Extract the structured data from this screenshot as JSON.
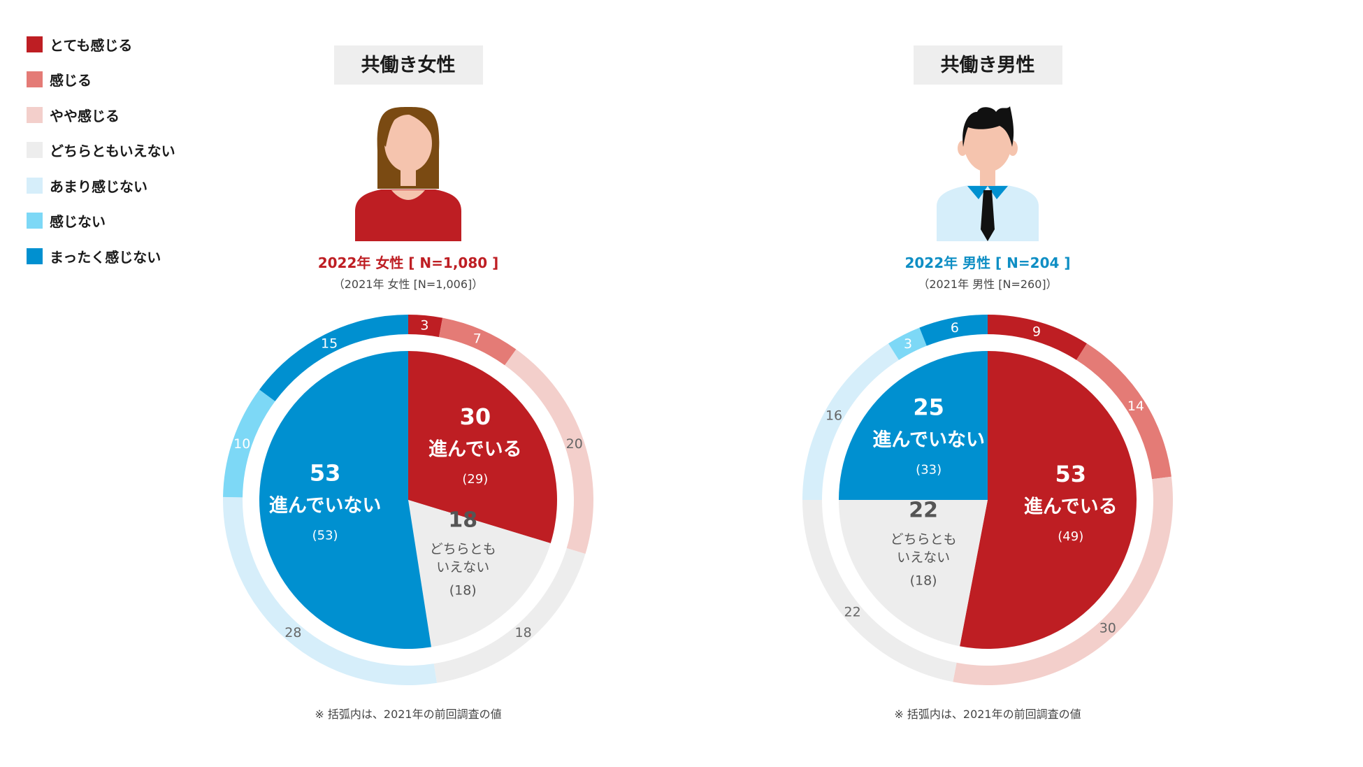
{
  "legend": [
    {
      "label": "とても感じる",
      "color": "#BE1E23"
    },
    {
      "label": "感じる",
      "color": "#E47B76"
    },
    {
      "label": "やや感じる",
      "color": "#F3CFCB"
    },
    {
      "label": "どちらともいえない",
      "color": "#EDEDED"
    },
    {
      "label": "あまり感じない",
      "color": "#D6EEFA"
    },
    {
      "label": "感じない",
      "color": "#7DD8F6"
    },
    {
      "label": "まったく感じない",
      "color": "#0090D0"
    }
  ],
  "footnote": "※ 括弧内は、2021年の前回調査の値",
  "chart_data": [
    {
      "type": "pie",
      "title": "共働き女性",
      "subtitle_2022": "2022年 女性 [ N=1,080 ]",
      "subtitle_2021": "（2021年 女性 [N=1,006]）",
      "accent": "#BE1E23",
      "outer_ring": {
        "categories": [
          "とても感じる",
          "感じる",
          "やや感じる",
          "どちらともいえない",
          "あまり感じない",
          "感じない",
          "まったく感じない"
        ],
        "values": [
          3,
          7,
          20,
          18,
          28,
          10,
          15
        ]
      },
      "inner_pie": [
        {
          "value": 30,
          "label": "進んでいる",
          "prev": "(29)"
        },
        {
          "value": 18,
          "label_lines": [
            "どちらとも",
            "いえない"
          ],
          "prev": "(18)"
        },
        {
          "value": 53,
          "label": "進んでいない",
          "prev": "(53)"
        }
      ]
    },
    {
      "type": "pie",
      "title": "共働き男性",
      "subtitle_2022": "2022年 男性 [ N=204 ]",
      "subtitle_2021": "（2021年 男性 [N=260]）",
      "accent": "#0E8EC4",
      "outer_ring": {
        "categories": [
          "とても感じる",
          "感じる",
          "やや感じる",
          "どちらともいえない",
          "あまり感じない",
          "感じない",
          "まったく感じない"
        ],
        "values": [
          9,
          14,
          30,
          22,
          16,
          3,
          6
        ]
      },
      "inner_pie": [
        {
          "value": 53,
          "label": "進んでいる",
          "prev": "(49)"
        },
        {
          "value": 22,
          "label_lines": [
            "どちらとも",
            "いえない"
          ],
          "prev": "(18)"
        },
        {
          "value": 25,
          "label": "進んでいない",
          "prev": "(33)"
        }
      ]
    }
  ]
}
